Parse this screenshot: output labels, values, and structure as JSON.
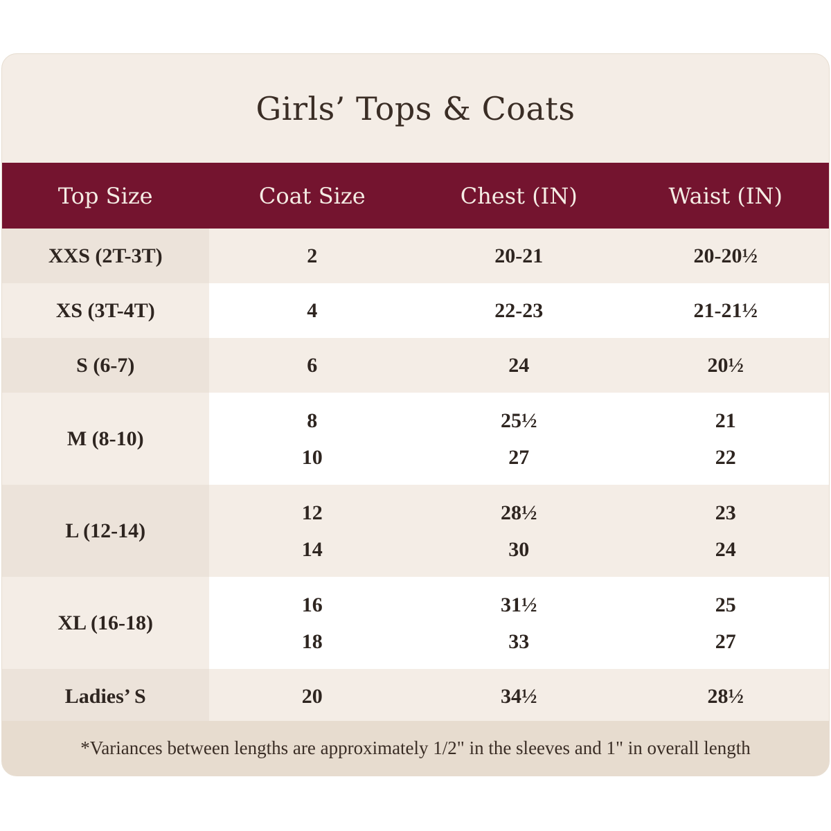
{
  "title": "Girls’ Tops & Coats",
  "columns": [
    "Top Size",
    "Coat Size",
    "Chest (IN)",
    "Waist (IN)"
  ],
  "rows": [
    {
      "top": "XXS (2T-3T)",
      "coat": [
        "2"
      ],
      "chest": [
        "20-21"
      ],
      "waist": [
        "20-20½"
      ]
    },
    {
      "top": "XS (3T-4T)",
      "coat": [
        "4"
      ],
      "chest": [
        "22-23"
      ],
      "waist": [
        "21-21½"
      ]
    },
    {
      "top": "S (6-7)",
      "coat": [
        "6"
      ],
      "chest": [
        "24"
      ],
      "waist": [
        "20½"
      ]
    },
    {
      "top": "M (8-10)",
      "coat": [
        "8",
        "10"
      ],
      "chest": [
        "25½",
        "27"
      ],
      "waist": [
        "21",
        "22"
      ]
    },
    {
      "top": "L (12-14)",
      "coat": [
        "12",
        "14"
      ],
      "chest": [
        "28½",
        "30"
      ],
      "waist": [
        "23",
        "24"
      ]
    },
    {
      "top": "XL (16-18)",
      "coat": [
        "16",
        "18"
      ],
      "chest": [
        "31½",
        "33"
      ],
      "waist": [
        "25",
        "27"
      ]
    },
    {
      "top": "Ladies’ S",
      "coat": [
        "20"
      ],
      "chest": [
        "34½"
      ],
      "waist": [
        "28½"
      ]
    }
  ],
  "footnote": "*Variances between lengths are approximately 1/2\" in the sleeves and 1\" in overall length",
  "colors": {
    "header_bg": "#74142f",
    "header_text": "#f5ece4",
    "card_bg": "#f4ede6",
    "footer_bg": "#e7dccf"
  }
}
